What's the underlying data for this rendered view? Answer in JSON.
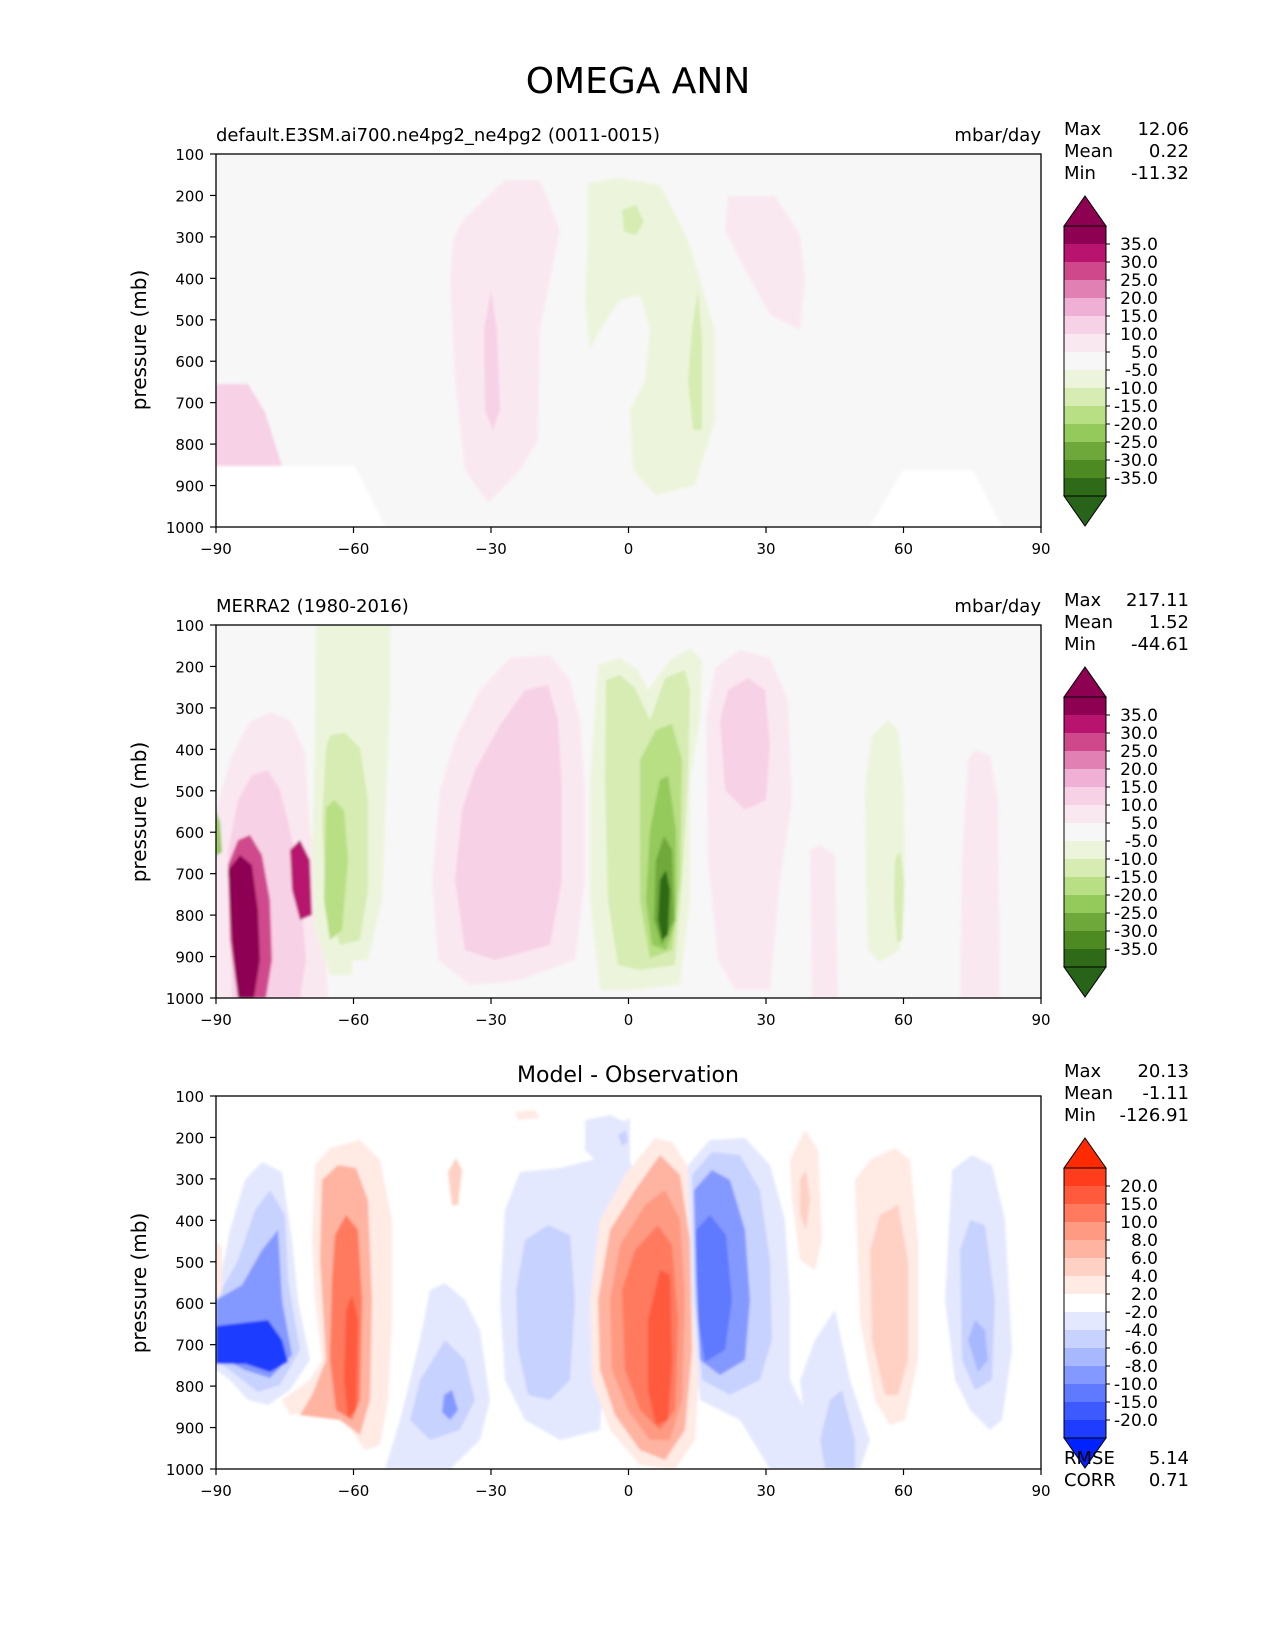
{
  "figure": {
    "title": "OMEGA ANN"
  },
  "chart_data": [
    {
      "type": "heatmap",
      "title": "default.E3SM.ai700.ne4pg2_ne4pg2 (0011-0015)",
      "units": "mbar/day",
      "xlabel": "",
      "ylabel": "pressure (mb)",
      "xlim": [
        -90,
        90
      ],
      "ylim": [
        1000,
        100
      ],
      "x_ticks": [
        "−90",
        "−60",
        "−30",
        "0",
        "30",
        "60",
        "90"
      ],
      "y_ticks": [
        "100",
        "200",
        "300",
        "400",
        "500",
        "600",
        "700",
        "800",
        "900",
        "1000"
      ],
      "stats": [
        {
          "label": "Max",
          "value": "12.06"
        },
        {
          "label": "Mean",
          "value": "0.22"
        },
        {
          "label": "Min",
          "value": "-11.32"
        }
      ],
      "colorbar": {
        "labels": [
          "35.0",
          "30.0",
          "25.0",
          "20.0",
          "15.0",
          "10.0",
          "5.0",
          "-5.0",
          "-10.0",
          "-15.0",
          "-20.0",
          "-25.0",
          "-30.0",
          "-35.0"
        ],
        "colors": [
          "#8e0152",
          "#b8136e",
          "#d0488c",
          "#e180b2",
          "#f0b0d5",
          "#f7d1e6",
          "#fae8f1",
          "#f7f7f7",
          "#ecf5dc",
          "#d6ecb2",
          "#b8df84",
          "#94c95c",
          "#6fa83a",
          "#4d8a22",
          "#2e6a18"
        ],
        "over": "#8e0152",
        "under": "#276419"
      }
    },
    {
      "type": "heatmap",
      "title": "MERRA2 (1980-2016)",
      "units": "mbar/day",
      "xlabel": "",
      "ylabel": "pressure (mb)",
      "xlim": [
        -90,
        90
      ],
      "ylim": [
        1000,
        100
      ],
      "x_ticks": [
        "−90",
        "−60",
        "−30",
        "0",
        "30",
        "60",
        "90"
      ],
      "y_ticks": [
        "100",
        "200",
        "300",
        "400",
        "500",
        "600",
        "700",
        "800",
        "900",
        "1000"
      ],
      "stats": [
        {
          "label": "Max",
          "value": "217.11"
        },
        {
          "label": "Mean",
          "value": "1.52"
        },
        {
          "label": "Min",
          "value": "-44.61"
        }
      ],
      "colorbar": {
        "labels": [
          "35.0",
          "30.0",
          "25.0",
          "20.0",
          "15.0",
          "10.0",
          "5.0",
          "-5.0",
          "-10.0",
          "-15.0",
          "-20.0",
          "-25.0",
          "-30.0",
          "-35.0"
        ],
        "colors": [
          "#8e0152",
          "#b8136e",
          "#d0488c",
          "#e180b2",
          "#f0b0d5",
          "#f7d1e6",
          "#fae8f1",
          "#f7f7f7",
          "#ecf5dc",
          "#d6ecb2",
          "#b8df84",
          "#94c95c",
          "#6fa83a",
          "#4d8a22",
          "#2e6a18"
        ],
        "over": "#8e0152",
        "under": "#276419"
      }
    },
    {
      "type": "heatmap",
      "title": "Model - Observation",
      "units": "",
      "xlabel": "",
      "ylabel": "pressure (mb)",
      "xlim": [
        -90,
        90
      ],
      "ylim": [
        1000,
        100
      ],
      "x_ticks": [
        "−90",
        "−60",
        "−30",
        "0",
        "30",
        "60",
        "90"
      ],
      "y_ticks": [
        "100",
        "200",
        "300",
        "400",
        "500",
        "600",
        "700",
        "800",
        "900",
        "1000"
      ],
      "stats": [
        {
          "label": "Max",
          "value": "20.13"
        },
        {
          "label": "Mean",
          "value": "-1.11"
        },
        {
          "label": "Min",
          "value": "-126.91"
        }
      ],
      "extra_stats": [
        {
          "label": "RMSE",
          "value": "5.14"
        },
        {
          "label": "CORR",
          "value": "0.71"
        }
      ],
      "colorbar": {
        "labels": [
          "20.0",
          "15.0",
          "10.0",
          "8.0",
          "6.0",
          "4.0",
          "2.0",
          "-2.0",
          "-4.0",
          "-6.0",
          "-8.0",
          "-10.0",
          "-15.0",
          "-20.0"
        ],
        "colors": [
          "#ff3c1c",
          "#ff5a3c",
          "#ff7a5e",
          "#ff9a82",
          "#ffb4a2",
          "#ffd0c4",
          "#ffeae4",
          "#ffffff",
          "#e4e8ff",
          "#c8d2ff",
          "#a8b8ff",
          "#8499ff",
          "#5f79ff",
          "#3c5aff",
          "#1f3dff"
        ],
        "over": "#ff2a00",
        "under": "#0022ff"
      }
    }
  ]
}
